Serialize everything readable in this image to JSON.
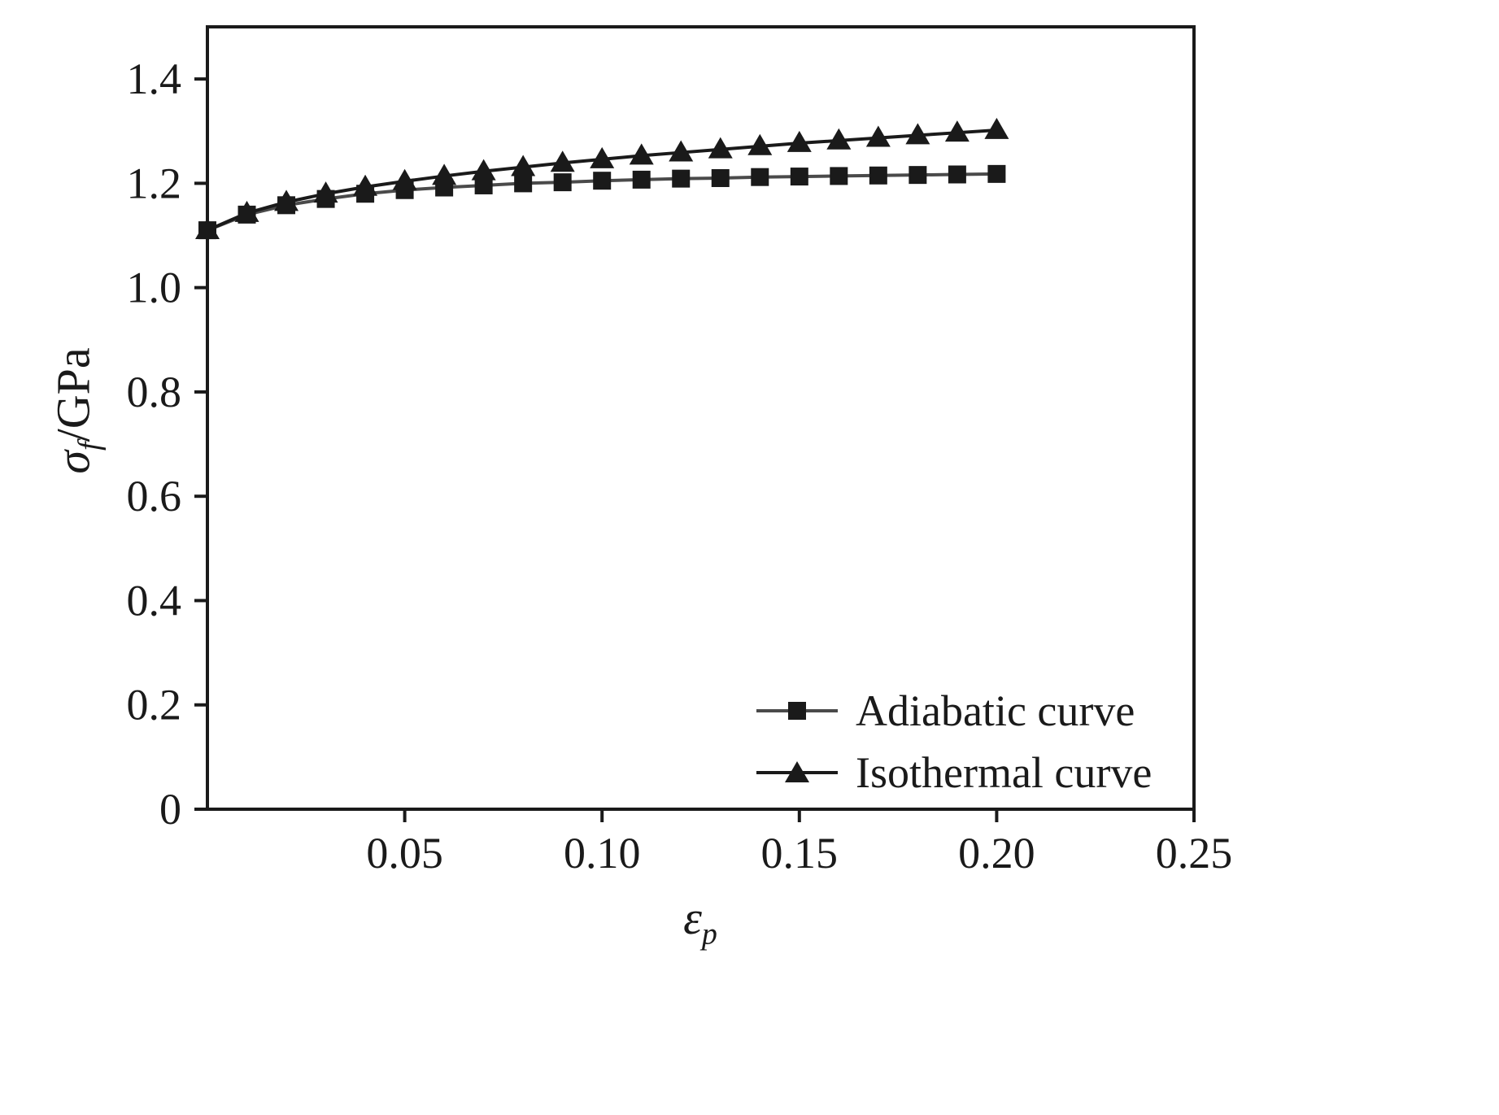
{
  "chart_data": {
    "type": "line",
    "title": "",
    "xlabel": {
      "symbol": "ε",
      "subscript": "p"
    },
    "ylabel": {
      "symbol": "σ",
      "subscript": "f",
      "suffix": "/GPa"
    },
    "xlim": [
      0,
      0.25
    ],
    "ylim": [
      0,
      1.5
    ],
    "xticks": [
      0.05,
      0.1,
      0.15,
      0.2,
      0.25
    ],
    "xtick_labels": [
      "0.05",
      "0.10",
      "0.15",
      "0.20",
      "0.25"
    ],
    "yticks": [
      0,
      0.2,
      0.4,
      0.6,
      0.8,
      1.0,
      1.2,
      1.4
    ],
    "ytick_labels": [
      "0",
      "0.2",
      "0.4",
      "0.6",
      "0.8",
      "1.0",
      "1.2",
      "1.4"
    ],
    "grid": false,
    "legend_position": "inside lower right",
    "frame_color": "#1a1a1a",
    "x": [
      0,
      0.01,
      0.02,
      0.03,
      0.04,
      0.05,
      0.06,
      0.07,
      0.08,
      0.09,
      0.1,
      0.11,
      0.12,
      0.13,
      0.14,
      0.15,
      0.16,
      0.17,
      0.18,
      0.19,
      0.2
    ],
    "series": [
      {
        "name": "Adiabatic curve",
        "marker": "square",
        "marker_color": "#1a1a1a",
        "line_color": "#4a4a4a",
        "values": [
          1.11,
          1.14,
          1.158,
          1.17,
          1.18,
          1.187,
          1.192,
          1.196,
          1.2,
          1.202,
          1.205,
          1.207,
          1.209,
          1.21,
          1.212,
          1.213,
          1.214,
          1.215,
          1.216,
          1.217,
          1.218
        ]
      },
      {
        "name": "Isothermal curve",
        "marker": "triangle",
        "marker_color": "#1a1a1a",
        "line_color": "#1a1a1a",
        "values": [
          1.11,
          1.143,
          1.164,
          1.18,
          1.193,
          1.204,
          1.214,
          1.223,
          1.231,
          1.239,
          1.246,
          1.253,
          1.259,
          1.265,
          1.271,
          1.277,
          1.282,
          1.287,
          1.292,
          1.297,
          1.302
        ]
      }
    ]
  }
}
